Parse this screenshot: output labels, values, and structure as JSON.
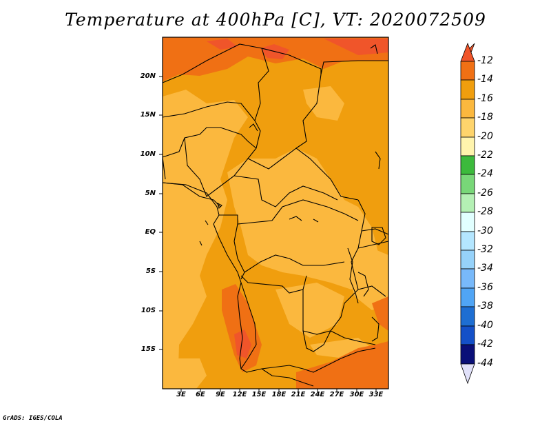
{
  "title": "Temperature at 400hPa [C], VT: 2020072509",
  "map": {
    "lat_labels": [
      "20N",
      "15N",
      "10N",
      "5N",
      "EQ",
      "5S",
      "10S",
      "15S"
    ],
    "lon_labels": [
      "3E",
      "6E",
      "9E",
      "12E",
      "15E",
      "18E",
      "21E",
      "24E",
      "27E",
      "30E",
      "33E"
    ]
  },
  "colorbar": {
    "labels": [
      "-12",
      "-14",
      "-16",
      "-18",
      "-20",
      "-22",
      "-24",
      "-26",
      "-28",
      "-30",
      "-32",
      "-34",
      "-36",
      "-38",
      "-40",
      "-42",
      "-44"
    ],
    "colors": {
      "above_-12": "#f0552a",
      "-14_-12": "#f07014",
      "-16_-14": "#f09e0e",
      "-18_-16": "#fbb83e",
      "-20_-18": "#fed46c",
      "-22_-20": "#fff4ad",
      "-24_-22": "#3cba3c",
      "-26_-24": "#78d778",
      "-28_-26": "#b4f0b4",
      "-30_-28": "#e1ffff",
      "-32_-30": "#b4e6ff",
      "-34_-32": "#96d2fa",
      "-36_-34": "#78b9fa",
      "-38_-36": "#50a5f5",
      "-40_-38": "#1e6ed2",
      "-42_-40": "#1450c8",
      "-44_-42": "#0a0f78",
      "below_-44": "#e1e1fa"
    }
  },
  "footer": "GrADS: IGES/COLA"
}
